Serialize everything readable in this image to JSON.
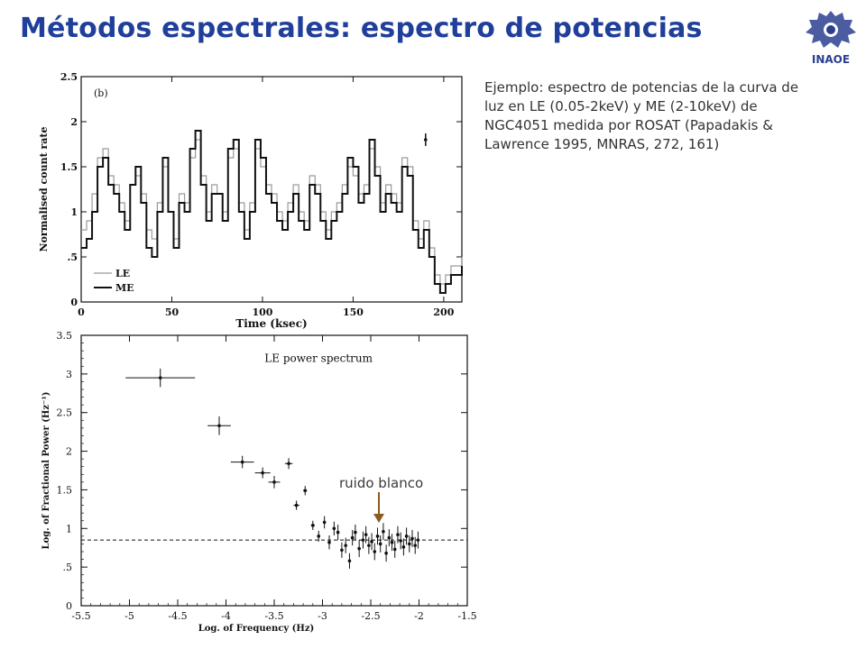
{
  "slide": {
    "title": "Métodos espectrales: espectro de potencias",
    "description": "Ejemplo: espectro de potencias de la curva de luz en LE (0.05-2keV) y ME (2-10keV) de NGC4051 medida por ROSAT (Papadakis & Lawrence 1995, MNRAS, 272, 161)",
    "annotation": "ruido blanco",
    "logo_text": "INAOE"
  },
  "colors": {
    "title": "#1f3f9a",
    "logo": "#2b3f8f",
    "arrow": "#8a5a1e",
    "plot_ink": "#111111",
    "le_series": "#9a9a9a"
  },
  "chart_data": [
    {
      "type": "line",
      "panel_label": "(b)",
      "title": "",
      "xlabel": "Time (ksec)",
      "ylabel": "Normalised count rate",
      "xlim": [
        0,
        210
      ],
      "ylim": [
        0,
        2.5
      ],
      "x_ticks": [
        "0",
        "50",
        "100",
        "150",
        "200"
      ],
      "y_ticks": [
        "0",
        ".5",
        "1",
        "1.5",
        "2",
        "2.5"
      ],
      "legend": {
        "placement": "lower-left",
        "entries": [
          "LE",
          "ME"
        ]
      },
      "error_bar": {
        "x": 190,
        "y": 1.8,
        "err": 0.07
      },
      "series": [
        {
          "name": "LE",
          "x": [
            0,
            3,
            6,
            9,
            12,
            15,
            18,
            21,
            24,
            27,
            30,
            33,
            36,
            39,
            42,
            45,
            48,
            51,
            54,
            57,
            60,
            63,
            66,
            69,
            72,
            75,
            78,
            81,
            84,
            87,
            90,
            93,
            96,
            99,
            102,
            105,
            108,
            111,
            114,
            117,
            120,
            123,
            126,
            129,
            132,
            135,
            138,
            141,
            144,
            147,
            150,
            153,
            156,
            159,
            162,
            165,
            168,
            171,
            174,
            177,
            180,
            183,
            186,
            189,
            192,
            195,
            198,
            201,
            204,
            207,
            210
          ],
          "y": [
            0.8,
            0.9,
            1.2,
            1.6,
            1.7,
            1.4,
            1.3,
            1.1,
            0.9,
            1.3,
            1.4,
            1.2,
            0.8,
            0.7,
            1.1,
            1.5,
            1.0,
            0.7,
            1.2,
            1.1,
            1.6,
            1.8,
            1.4,
            1.0,
            1.3,
            1.2,
            1.0,
            1.6,
            1.7,
            1.1,
            0.8,
            1.1,
            1.7,
            1.5,
            1.3,
            1.2,
            1.0,
            0.9,
            1.1,
            1.3,
            1.0,
            0.9,
            1.4,
            1.3,
            1.0,
            0.8,
            1.0,
            1.1,
            1.3,
            1.5,
            1.4,
            1.2,
            1.3,
            1.7,
            1.5,
            1.1,
            1.3,
            1.2,
            1.1,
            1.6,
            1.5,
            0.9,
            0.7,
            0.9,
            0.6,
            0.3,
            0.2,
            0.3,
            0.4,
            0.4,
            0.5
          ]
        },
        {
          "name": "ME",
          "x": [
            0,
            3,
            6,
            9,
            12,
            15,
            18,
            21,
            24,
            27,
            30,
            33,
            36,
            39,
            42,
            45,
            48,
            51,
            54,
            57,
            60,
            63,
            66,
            69,
            72,
            75,
            78,
            81,
            84,
            87,
            90,
            93,
            96,
            99,
            102,
            105,
            108,
            111,
            114,
            117,
            120,
            123,
            126,
            129,
            132,
            135,
            138,
            141,
            144,
            147,
            150,
            153,
            156,
            159,
            162,
            165,
            168,
            171,
            174,
            177,
            180,
            183,
            186,
            189,
            192,
            195,
            198,
            201,
            204,
            207,
            210
          ],
          "y": [
            0.6,
            0.7,
            1.0,
            1.5,
            1.6,
            1.3,
            1.2,
            1.0,
            0.8,
            1.3,
            1.5,
            1.1,
            0.6,
            0.5,
            1.0,
            1.6,
            1.0,
            0.6,
            1.1,
            1.0,
            1.7,
            1.9,
            1.3,
            0.9,
            1.2,
            1.2,
            0.9,
            1.7,
            1.8,
            1.0,
            0.7,
            1.0,
            1.8,
            1.6,
            1.2,
            1.1,
            0.9,
            0.8,
            1.0,
            1.2,
            0.9,
            0.8,
            1.3,
            1.2,
            0.9,
            0.7,
            0.9,
            1.0,
            1.2,
            1.6,
            1.5,
            1.1,
            1.2,
            1.8,
            1.4,
            1.0,
            1.2,
            1.1,
            1.0,
            1.5,
            1.4,
            0.8,
            0.6,
            0.8,
            0.5,
            0.2,
            0.1,
            0.2,
            0.3,
            0.3,
            0.4
          ]
        }
      ]
    },
    {
      "type": "scatter",
      "title": "LE power spectrum",
      "xlabel": "Log. of Frequency (Hz)",
      "ylabel": "Log. of Fractional Power (Hz⁻¹)",
      "xlim": [
        -5.5,
        -1.5
      ],
      "ylim": [
        0,
        3.5
      ],
      "x_ticks": [
        "-5.5",
        "-5",
        "-4.5",
        "-4",
        "-3.5",
        "-3",
        "-2.5",
        "-2",
        "-1.5"
      ],
      "y_ticks": [
        "0",
        ".5",
        "1",
        "1.5",
        "2",
        "2.5",
        "3",
        "3.5"
      ],
      "white_noise_level": 0.85,
      "series": [
        {
          "name": "",
          "points": [
            {
              "x": -4.68,
              "y": 2.95,
              "xerr": 0.36,
              "yerr": 0.12
            },
            {
              "x": -4.07,
              "y": 2.33,
              "xerr": 0.12,
              "yerr": 0.12
            },
            {
              "x": -3.83,
              "y": 1.86,
              "xerr": 0.12,
              "yerr": 0.08
            },
            {
              "x": -3.62,
              "y": 1.72,
              "xerr": 0.08,
              "yerr": 0.07
            },
            {
              "x": -3.5,
              "y": 1.6,
              "xerr": 0.06,
              "yerr": 0.08
            },
            {
              "x": -3.35,
              "y": 1.84,
              "xerr": 0.04,
              "yerr": 0.07
            },
            {
              "x": -3.27,
              "y": 1.3,
              "xerr": 0.03,
              "yerr": 0.06
            },
            {
              "x": -3.18,
              "y": 1.49,
              "xerr": 0.02,
              "yerr": 0.06
            },
            {
              "x": -3.1,
              "y": 1.04,
              "xerr": 0.02,
              "yerr": 0.06
            },
            {
              "x": -3.04,
              "y": 0.9,
              "xerr": 0.01,
              "yerr": 0.07
            },
            {
              "x": -2.98,
              "y": 1.08,
              "xerr": 0.01,
              "yerr": 0.08
            },
            {
              "x": -2.93,
              "y": 0.82,
              "xerr": 0.01,
              "yerr": 0.09
            },
            {
              "x": -2.88,
              "y": 1.0,
              "xerr": 0.01,
              "yerr": 0.09
            },
            {
              "x": -2.84,
              "y": 0.95,
              "xerr": 0.01,
              "yerr": 0.1
            },
            {
              "x": -2.8,
              "y": 0.72,
              "xerr": 0.01,
              "yerr": 0.1
            },
            {
              "x": -2.76,
              "y": 0.78,
              "xerr": 0.01,
              "yerr": 0.1
            },
            {
              "x": -2.72,
              "y": 0.58,
              "xerr": 0.01,
              "yerr": 0.1
            },
            {
              "x": -2.69,
              "y": 0.88,
              "xerr": 0.01,
              "yerr": 0.1
            },
            {
              "x": -2.66,
              "y": 0.95,
              "xerr": 0.01,
              "yerr": 0.1
            },
            {
              "x": -2.62,
              "y": 0.74,
              "xerr": 0.01,
              "yerr": 0.11
            },
            {
              "x": -2.58,
              "y": 0.85,
              "xerr": 0.01,
              "yerr": 0.11
            },
            {
              "x": -2.55,
              "y": 0.92,
              "xerr": 0.01,
              "yerr": 0.11
            },
            {
              "x": -2.52,
              "y": 0.78,
              "xerr": 0.01,
              "yerr": 0.11
            },
            {
              "x": -2.49,
              "y": 0.83,
              "xerr": 0.01,
              "yerr": 0.11
            },
            {
              "x": -2.46,
              "y": 0.7,
              "xerr": 0.01,
              "yerr": 0.11
            },
            {
              "x": -2.43,
              "y": 0.9,
              "xerr": 0.01,
              "yerr": 0.11
            },
            {
              "x": -2.4,
              "y": 0.8,
              "xerr": 0.01,
              "yerr": 0.11
            },
            {
              "x": -2.37,
              "y": 0.96,
              "xerr": 0.01,
              "yerr": 0.11
            },
            {
              "x": -2.34,
              "y": 0.68,
              "xerr": 0.01,
              "yerr": 0.11
            },
            {
              "x": -2.31,
              "y": 0.88,
              "xerr": 0.01,
              "yerr": 0.11
            },
            {
              "x": -2.28,
              "y": 0.82,
              "xerr": 0.01,
              "yerr": 0.11
            },
            {
              "x": -2.25,
              "y": 0.73,
              "xerr": 0.01,
              "yerr": 0.11
            },
            {
              "x": -2.22,
              "y": 0.92,
              "xerr": 0.01,
              "yerr": 0.11
            },
            {
              "x": -2.19,
              "y": 0.84,
              "xerr": 0.01,
              "yerr": 0.11
            },
            {
              "x": -2.16,
              "y": 0.76,
              "xerr": 0.01,
              "yerr": 0.11
            },
            {
              "x": -2.13,
              "y": 0.9,
              "xerr": 0.01,
              "yerr": 0.11
            },
            {
              "x": -2.1,
              "y": 0.8,
              "xerr": 0.01,
              "yerr": 0.11
            },
            {
              "x": -2.07,
              "y": 0.87,
              "xerr": 0.01,
              "yerr": 0.11
            },
            {
              "x": -2.04,
              "y": 0.78,
              "xerr": 0.01,
              "yerr": 0.11
            },
            {
              "x": -2.01,
              "y": 0.85,
              "xerr": 0.01,
              "yerr": 0.11
            }
          ]
        }
      ]
    }
  ]
}
